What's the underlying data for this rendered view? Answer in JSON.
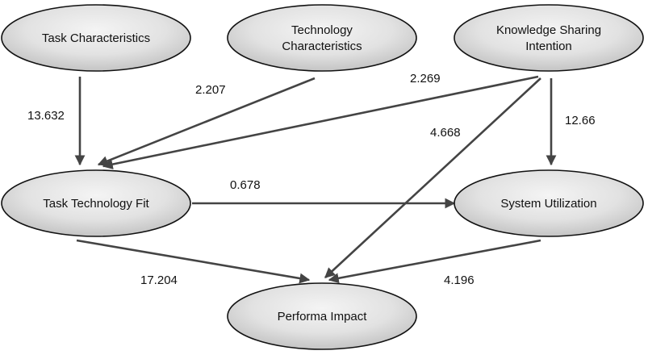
{
  "nodes": {
    "task_characteristics": [
      "Task Characteristics"
    ],
    "technology_characteristics": [
      "Technology",
      "Characteristics"
    ],
    "knowledge_sharing_intention": [
      "Knowledge Sharing",
      "Intention"
    ],
    "task_technology_fit": [
      "Task Technology Fit"
    ],
    "system_utilization": [
      "System Utilization"
    ],
    "performa_impact": [
      "Performa Impact"
    ]
  },
  "edges": [
    {
      "from": "task_characteristics",
      "to": "task_technology_fit",
      "label": "13.632"
    },
    {
      "from": "technology_characteristics",
      "to": "task_technology_fit",
      "label": "2.207"
    },
    {
      "from": "knowledge_sharing_intention",
      "to": "task_technology_fit",
      "label": "2.269"
    },
    {
      "from": "knowledge_sharing_intention",
      "to": "performa_impact",
      "label": "4.668"
    },
    {
      "from": "knowledge_sharing_intention",
      "to": "system_utilization",
      "label": "12.66"
    },
    {
      "from": "task_technology_fit",
      "to": "system_utilization",
      "label": "0.678"
    },
    {
      "from": "task_technology_fit",
      "to": "performa_impact",
      "label": "17.204"
    },
    {
      "from": "system_utilization",
      "to": "performa_impact",
      "label": "4.196"
    }
  ],
  "colors": {
    "node_fill_light": "#f2f2f2",
    "node_fill_dark": "#c4c4c4",
    "node_stroke": "#111111",
    "edge": "#444444",
    "text": "#111111"
  }
}
